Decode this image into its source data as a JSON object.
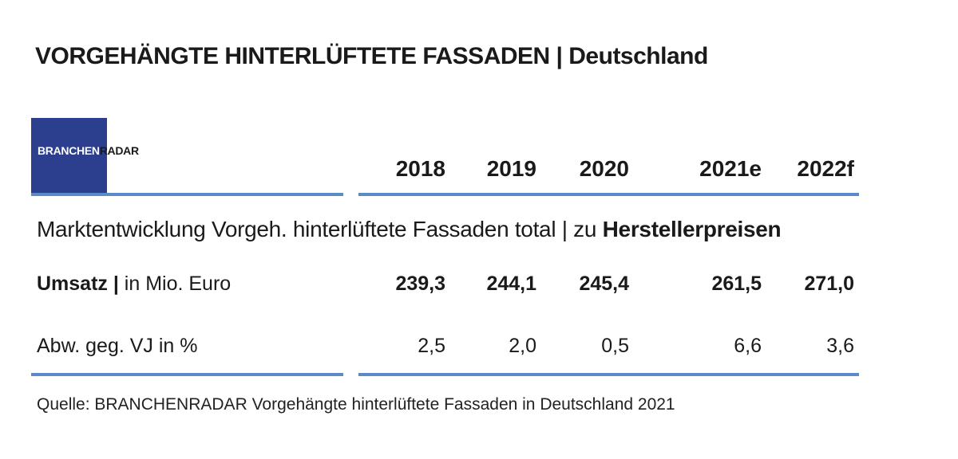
{
  "title": "VORGEHÄNGTE HINTERLÜFTETE FASSADEN | Deutschland",
  "logo": {
    "part1": "BRANCHEN",
    "part2": "RADAR"
  },
  "years": [
    "2018",
    "2019",
    "2020",
    "2021e",
    "2022f"
  ],
  "section": {
    "text": "Marktentwicklung Vorgeh. hinterlüftete Fassaden total | zu ",
    "bold": "Herstellerpreisen"
  },
  "rows": {
    "umsatz": {
      "label_bold": "Umsatz |",
      "label_rest": " in Mio. Euro",
      "values": [
        "239,3",
        "244,1",
        "245,4",
        "261,5",
        "271,0"
      ]
    },
    "abw": {
      "label": "Abw. geg. VJ in %",
      "values": [
        "2,5",
        "2,0",
        "0,5",
        "6,6",
        "3,6"
      ]
    }
  },
  "source": "Quelle: BRANCHENRADAR Vorgehängte hinterlüftete Fassaden in Deutschland 2021",
  "colors": {
    "rule": "#5b8ac9",
    "logo_bg": "#2b3f8e"
  }
}
